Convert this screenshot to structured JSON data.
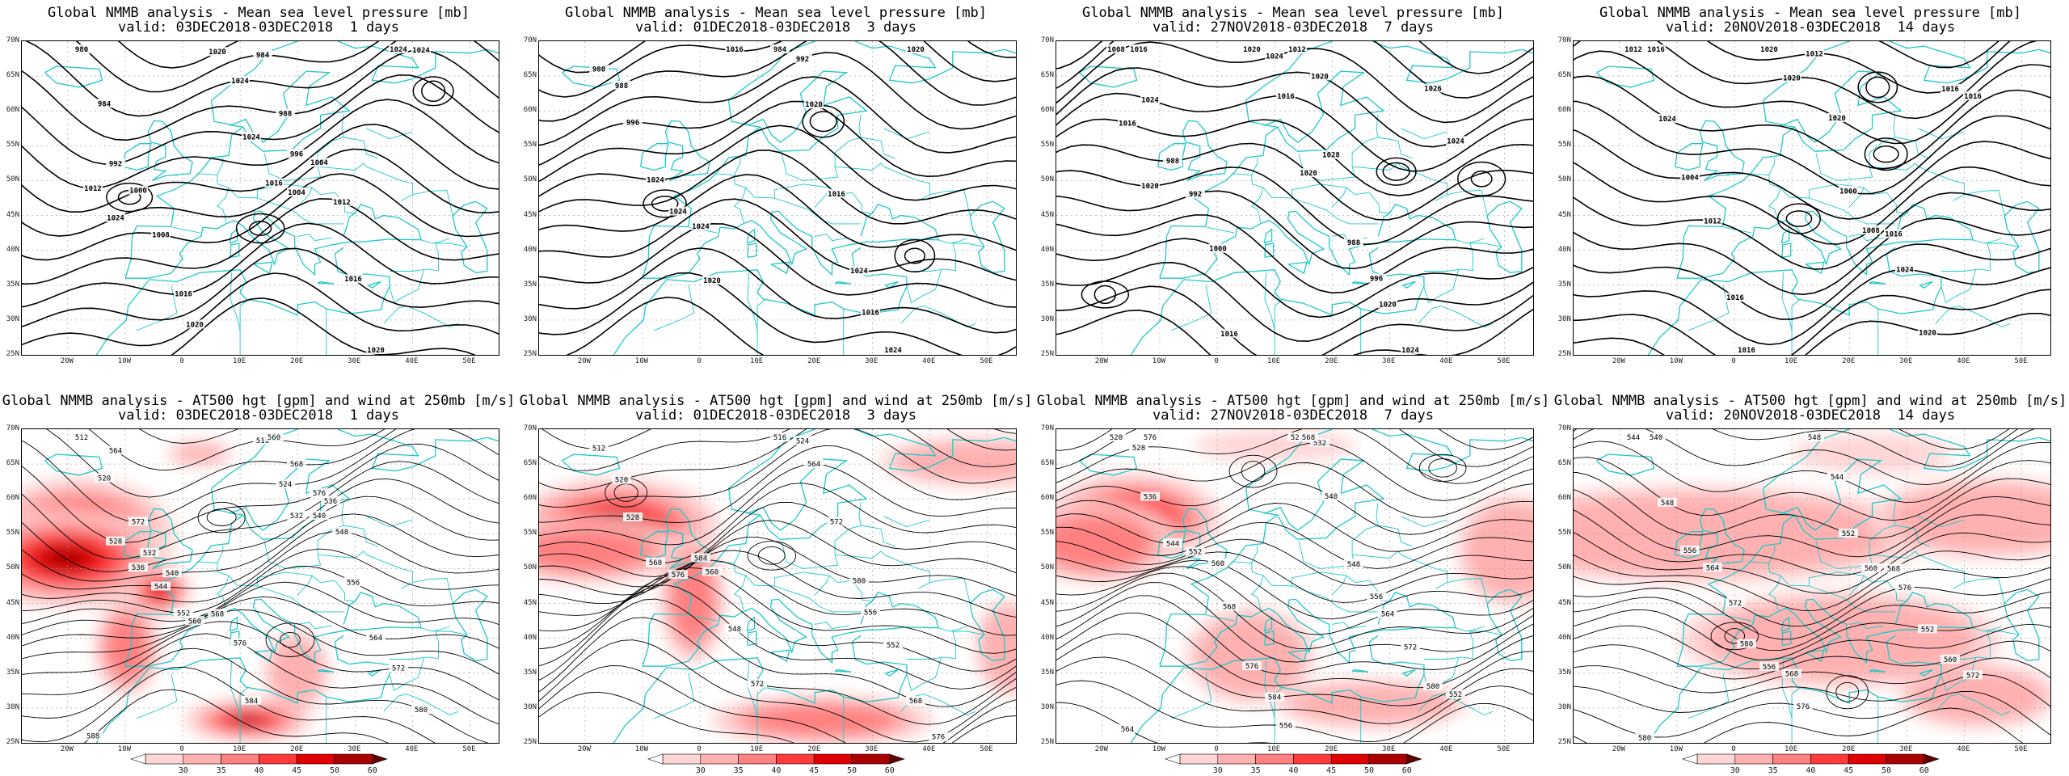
{
  "panels": [
    {
      "row": 0,
      "title": "Global NMMB analysis - Mean sea level pressure [mb]",
      "valid": "valid: 03DEC2018-03DEC2018  1 days",
      "labels": [
        "980",
        "984",
        "984",
        "988",
        "992",
        "996",
        "1000",
        "1004",
        "1008",
        "1012",
        "1016",
        "1016",
        "1020",
        "1020",
        "1020",
        "1024",
        "1024",
        "1024",
        "1024",
        "1012",
        "1016",
        "1024",
        "1004"
      ]
    },
    {
      "row": 0,
      "title": "Global NMMB analysis - Mean sea level pressure [mb]",
      "valid": "valid: 01DEC2018-03DEC2018  3 days",
      "labels": [
        "980",
        "984",
        "988",
        "992",
        "996",
        "1020",
        "1024",
        "1016",
        "1024",
        "1024",
        "1024",
        "1016",
        "1020",
        "1024",
        "1016",
        "1020"
      ]
    },
    {
      "row": 0,
      "title": "Global NMMB analysis - Mean sea level pressure [mb]",
      "valid": "valid: 27NOV2018-03DEC2018  7 days",
      "labels": [
        "1008",
        "1012",
        "1016",
        "1020",
        "1024",
        "1028",
        "988",
        "988",
        "992",
        "996",
        "1000",
        "1020",
        "1016",
        "1024",
        "1020",
        "1026",
        "1024",
        "1024",
        "1016",
        "1016",
        "1020",
        "1020"
      ]
    },
    {
      "row": 0,
      "title": "Global NMMB analysis - Mean sea level pressure [mb]",
      "valid": "valid: 20NOV2018-03DEC2018  14 days",
      "labels": [
        "1012",
        "1012",
        "1016",
        "1020",
        "1024",
        "1000",
        "1004",
        "1008",
        "1012",
        "1016",
        "1016",
        "1024",
        "1016",
        "1020",
        "1020",
        "1016",
        "1020",
        "1016"
      ]
    },
    {
      "row": 1,
      "title": "Global NMMB analysis - AT500 hgt [gpm] and wind at 250mb [m/s]",
      "valid": "valid: 03DEC2018-03DEC2018  1 days",
      "labels": [
        "512",
        "516",
        "520",
        "524",
        "528",
        "532",
        "536",
        "540",
        "544",
        "548",
        "552",
        "556",
        "560",
        "564",
        "568",
        "572",
        "576",
        "580",
        "584",
        "588",
        "560",
        "564",
        "568",
        "572",
        "576",
        "532",
        "536",
        "540"
      ]
    },
    {
      "row": 1,
      "title": "Global NMMB analysis - AT500 hgt [gpm] and wind at 250mb [m/s]",
      "valid": "valid: 01DEC2018-03DEC2018  3 days",
      "labels": [
        "512",
        "516",
        "520",
        "524",
        "528",
        "564",
        "568",
        "572",
        "576",
        "580",
        "584",
        "556",
        "560",
        "552",
        "548",
        "568",
        "572",
        "576"
      ]
    },
    {
      "row": 1,
      "title": "Global NMMB analysis - AT500 hgt [gpm] and wind at 250mb [m/s]",
      "valid": "valid: 27NOV2018-03DEC2018  7 days",
      "labels": [
        "520",
        "524",
        "528",
        "532",
        "536",
        "540",
        "544",
        "548",
        "552",
        "556",
        "560",
        "564",
        "568",
        "572",
        "576",
        "580",
        "584",
        "552",
        "556",
        "564",
        "568",
        "576"
      ]
    },
    {
      "row": 1,
      "title": "Global NMMB analysis - AT500 hgt [gpm] and wind at 250mb [m/s]",
      "valid": "valid: 20NOV2018-03DEC2018  14 days",
      "labels": [
        "544",
        "548",
        "540",
        "544",
        "548",
        "552",
        "556",
        "560",
        "564",
        "568",
        "572",
        "576",
        "580",
        "552",
        "556",
        "560",
        "568",
        "572",
        "576",
        "580"
      ]
    }
  ],
  "axes": {
    "lat_labels": [
      "70N",
      "65N",
      "60N",
      "55N",
      "50N",
      "45N",
      "40N",
      "35N",
      "30N",
      "25N"
    ],
    "lon_labels": [
      "20W",
      "10W",
      "0",
      "10E",
      "20E",
      "30E",
      "40E",
      "50E"
    ]
  },
  "colorbar": {
    "ticks": [
      "30",
      "35",
      "40",
      "45",
      "50",
      "60"
    ],
    "colors": [
      "#ffffff",
      "#ffd6d6",
      "#ffb0b0",
      "#ff8080",
      "#ff3a3a",
      "#e00000",
      "#aa0000",
      "#600000"
    ]
  },
  "colors": {
    "coast": "#1fc8c8",
    "contour": "#000000",
    "grid": "#9a9a9a"
  }
}
